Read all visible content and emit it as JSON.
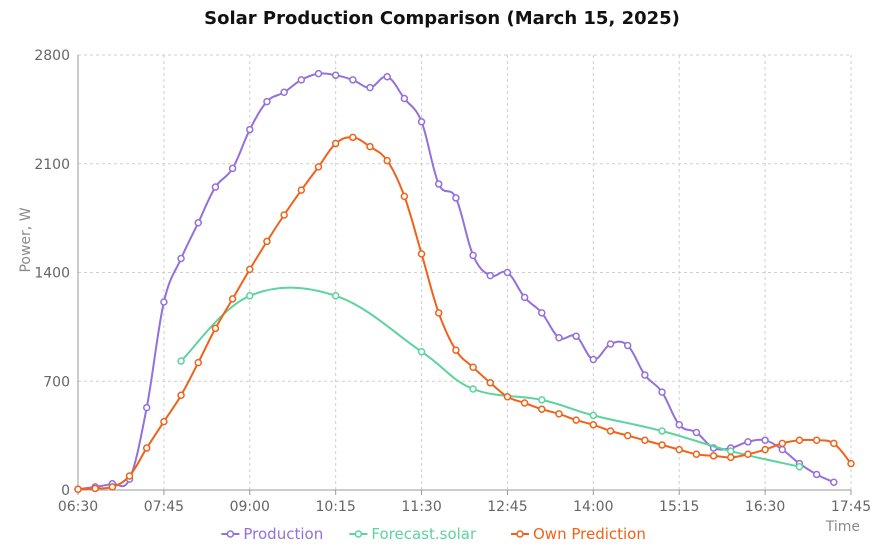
{
  "chart_data": {
    "type": "line",
    "title": "Solar Production Comparison (March 15, 2025)",
    "xlabel": "Time",
    "ylabel": "Power, W",
    "x_ticks": [
      "06:30",
      "07:45",
      "09:00",
      "10:15",
      "11:30",
      "12:45",
      "14:00",
      "15:15",
      "16:30",
      "17:45"
    ],
    "y_ticks": [
      0,
      700,
      1400,
      2100,
      2800
    ],
    "ylim": [
      0,
      2800
    ],
    "grid": true,
    "legend_position": "bottom-center",
    "series": [
      {
        "name": "Production",
        "color": "#9370db",
        "points": [
          [
            "06:30",
            5
          ],
          [
            "06:45",
            20
          ],
          [
            "07:00",
            40
          ],
          [
            "07:15",
            70
          ],
          [
            "07:30",
            530
          ],
          [
            "07:45",
            1210
          ],
          [
            "08:00",
            1490
          ],
          [
            "08:15",
            1720
          ],
          [
            "08:30",
            1950
          ],
          [
            "08:45",
            2070
          ],
          [
            "09:00",
            2320
          ],
          [
            "09:15",
            2500
          ],
          [
            "09:30",
            2560
          ],
          [
            "09:45",
            2640
          ],
          [
            "10:00",
            2680
          ],
          [
            "10:15",
            2670
          ],
          [
            "10:30",
            2640
          ],
          [
            "10:45",
            2590
          ],
          [
            "11:00",
            2660
          ],
          [
            "11:15",
            2520
          ],
          [
            "11:30",
            2370
          ],
          [
            "11:45",
            1970
          ],
          [
            "12:00",
            1880
          ],
          [
            "12:15",
            1510
          ],
          [
            "12:30",
            1380
          ],
          [
            "12:45",
            1400
          ],
          [
            "13:00",
            1240
          ],
          [
            "13:15",
            1140
          ],
          [
            "13:30",
            980
          ],
          [
            "13:45",
            990
          ],
          [
            "14:00",
            840
          ],
          [
            "14:15",
            940
          ],
          [
            "14:30",
            930
          ],
          [
            "14:45",
            740
          ],
          [
            "15:00",
            630
          ],
          [
            "15:15",
            420
          ],
          [
            "15:30",
            370
          ],
          [
            "15:45",
            270
          ],
          [
            "16:00",
            270
          ],
          [
            "16:15",
            310
          ],
          [
            "16:30",
            320
          ],
          [
            "16:45",
            260
          ],
          [
            "17:00",
            170
          ],
          [
            "17:15",
            100
          ],
          [
            "17:30",
            50
          ]
        ]
      },
      {
        "name": "Forecast.solar",
        "color": "#5dd39e",
        "points": [
          [
            "08:00",
            830
          ],
          [
            "09:00",
            1250
          ],
          [
            "10:15",
            1250
          ],
          [
            "11:30",
            890
          ],
          [
            "12:15",
            650
          ],
          [
            "13:15",
            580
          ],
          [
            "14:00",
            480
          ],
          [
            "15:00",
            380
          ],
          [
            "16:00",
            250
          ],
          [
            "17:00",
            150
          ]
        ]
      },
      {
        "name": "Own Prediction",
        "color": "#f0621a",
        "points": [
          [
            "06:30",
            5
          ],
          [
            "06:45",
            10
          ],
          [
            "07:00",
            20
          ],
          [
            "07:15",
            90
          ],
          [
            "07:30",
            270
          ],
          [
            "07:45",
            440
          ],
          [
            "08:00",
            610
          ],
          [
            "08:15",
            820
          ],
          [
            "08:30",
            1040
          ],
          [
            "08:45",
            1230
          ],
          [
            "09:00",
            1420
          ],
          [
            "09:15",
            1600
          ],
          [
            "09:30",
            1770
          ],
          [
            "09:45",
            1930
          ],
          [
            "10:00",
            2080
          ],
          [
            "10:15",
            2230
          ],
          [
            "10:30",
            2270
          ],
          [
            "10:45",
            2210
          ],
          [
            "11:00",
            2120
          ],
          [
            "11:15",
            1890
          ],
          [
            "11:30",
            1520
          ],
          [
            "11:45",
            1140
          ],
          [
            "12:00",
            900
          ],
          [
            "12:15",
            790
          ],
          [
            "12:30",
            690
          ],
          [
            "12:45",
            600
          ],
          [
            "13:00",
            560
          ],
          [
            "13:15",
            520
          ],
          [
            "13:30",
            490
          ],
          [
            "13:45",
            450
          ],
          [
            "14:00",
            420
          ],
          [
            "14:15",
            380
          ],
          [
            "14:30",
            350
          ],
          [
            "14:45",
            320
          ],
          [
            "15:00",
            290
          ],
          [
            "15:15",
            260
          ],
          [
            "15:30",
            230
          ],
          [
            "15:45",
            220
          ],
          [
            "16:00",
            210
          ],
          [
            "16:15",
            230
          ],
          [
            "16:30",
            260
          ],
          [
            "16:45",
            300
          ],
          [
            "17:00",
            320
          ],
          [
            "17:15",
            320
          ],
          [
            "17:30",
            300
          ],
          [
            "17:45",
            170
          ]
        ]
      }
    ]
  }
}
